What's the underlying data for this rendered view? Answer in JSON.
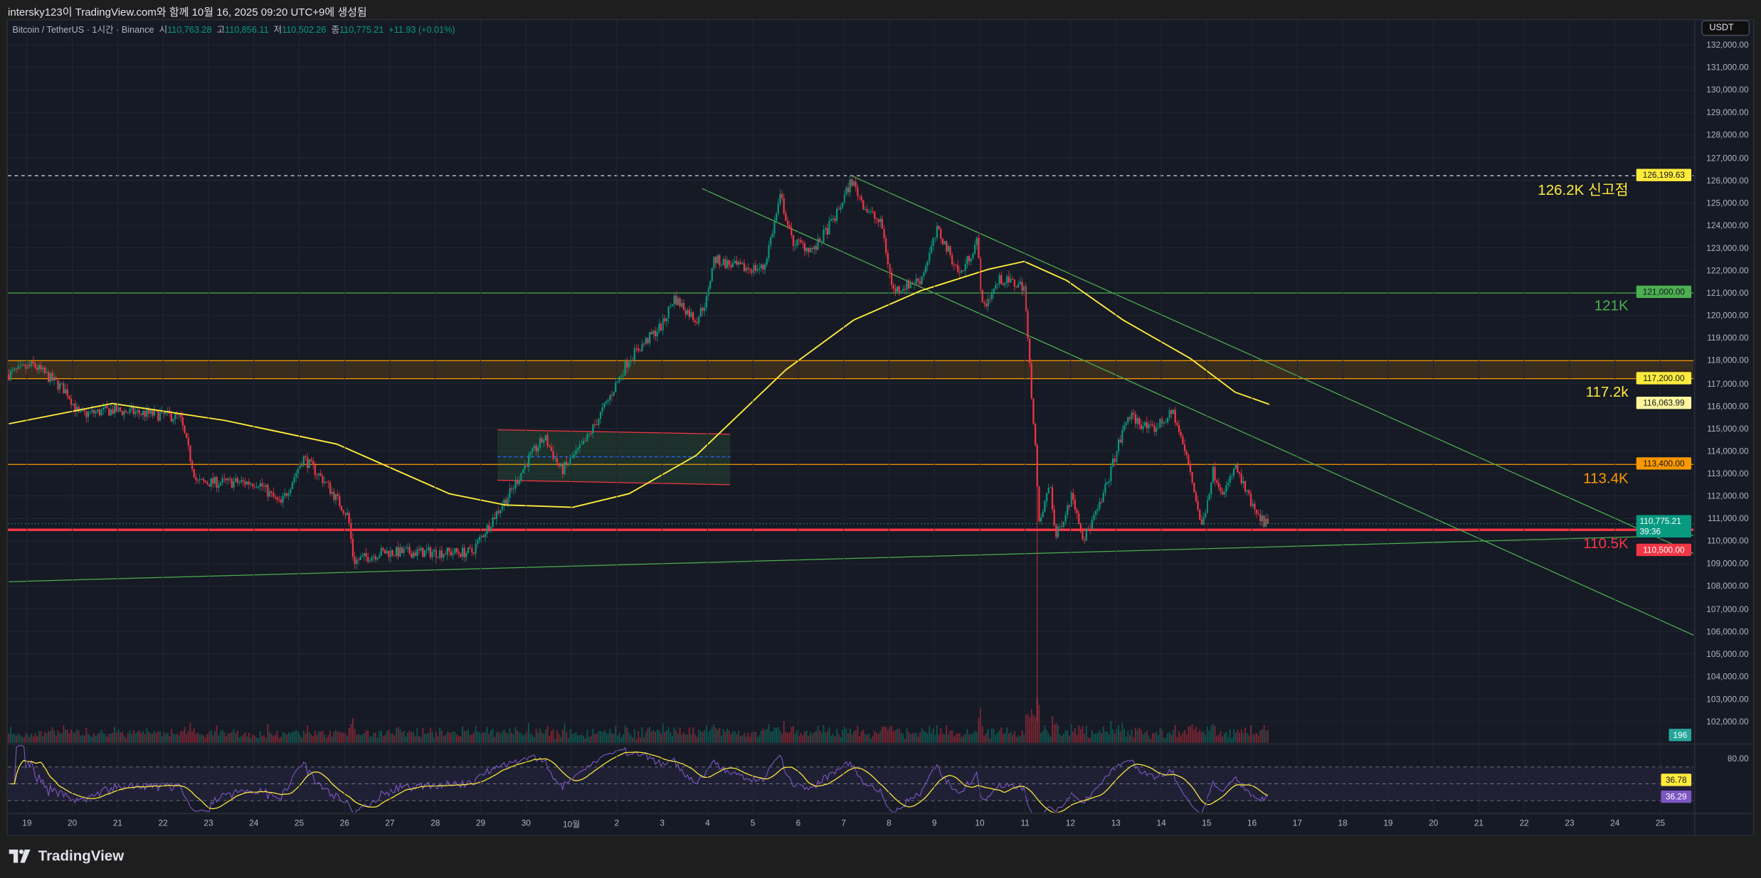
{
  "header": {
    "title": "intersky123이 TradingView.com와 함께 10월 16, 2025 09:20 UTC+9에 생성됨"
  },
  "legend": {
    "symbol": "Bitcoin / TetherUS · 1시간 · Binance",
    "open_label": "시",
    "open": "110,763.28",
    "high_label": "고",
    "high": "110,856.11",
    "low_label": "저",
    "low": "110,502.26",
    "close_label": "종",
    "close": "110,775.21",
    "change": "+11.93 (+0.01%)"
  },
  "currency": "USDT",
  "price_axis": [
    "132,000.00",
    "131,000.00",
    "130,000.00",
    "129,000.00",
    "128,000.00",
    "127,000.00",
    "126,000.00",
    "125,000.00",
    "124,000.00",
    "123,000.00",
    "122,000.00",
    "121,000.00",
    "120,000.00",
    "119,000.00",
    "118,000.00",
    "117,000.00",
    "116,000.00",
    "115,000.00",
    "114,000.00",
    "113,000.00",
    "112,000.00",
    "111,000.00",
    "110,000.00",
    "109,000.00",
    "108,000.00",
    "107,000.00",
    "106,000.00",
    "105,000.00",
    "104,000.00",
    "103,000.00",
    "102,000.00"
  ],
  "badges": {
    "ath": "126,199.63",
    "r121": "121,000.00",
    "r1172": "117,200.00",
    "ma": "116,063.99",
    "r1134": "113,400.00",
    "last": "110,775.21",
    "countdown": "39:36",
    "s1105": "110,500.00",
    "volume": "196",
    "rsi_ma": "36.78",
    "rsi": "36.29"
  },
  "rsi_axis": "80.00",
  "annotations": {
    "ath": "126.2K 신고점",
    "r121": "121K",
    "r1172": "117.2k",
    "r1134": "113.4K",
    "s1105": "110.5K"
  },
  "dates": [
    "19",
    "20",
    "21",
    "22",
    "23",
    "24",
    "25",
    "26",
    "27",
    "28",
    "29",
    "30",
    "10월",
    "2",
    "3",
    "4",
    "5",
    "6",
    "7",
    "8",
    "9",
    "10",
    "11",
    "12",
    "13",
    "14",
    "15",
    "16",
    "17",
    "18",
    "19",
    "20",
    "21",
    "22",
    "23",
    "24",
    "25"
  ],
  "colors": {
    "up": "#089981",
    "down": "#f23645",
    "ma": "#ffeb3b",
    "rsi": "#7e57c2",
    "green_line": "#4caf50",
    "orange": "#ff9800",
    "red": "#f23645"
  },
  "brand": "TradingView",
  "chart_data": {
    "type": "candlestick",
    "x_unit": "days since 2025-09-19 00:00",
    "price_path": [
      [
        -0.4,
        117400
      ],
      [
        0.15,
        117800
      ],
      [
        0.89,
        116600
      ],
      [
        1.14,
        115600
      ],
      [
        1.88,
        115800
      ],
      [
        3.37,
        115500
      ],
      [
        3.74,
        112600
      ],
      [
        5.1,
        112600
      ],
      [
        5.59,
        111600
      ],
      [
        6.09,
        113700
      ],
      [
        6.58,
        112600
      ],
      [
        7.08,
        111100
      ],
      [
        7.2,
        109100
      ],
      [
        7.82,
        109500
      ],
      [
        9.8,
        109500
      ],
      [
        10.3,
        111100
      ],
      [
        10.67,
        112200
      ],
      [
        11.04,
        113600
      ],
      [
        11.41,
        114600
      ],
      [
        11.78,
        113100
      ],
      [
        12.28,
        114300
      ],
      [
        12.77,
        116100
      ],
      [
        13.27,
        118100
      ],
      [
        14.01,
        119600
      ],
      [
        14.26,
        120800
      ],
      [
        14.75,
        119800
      ],
      [
        15.0,
        120800
      ],
      [
        15.12,
        122500
      ],
      [
        15.74,
        122100
      ],
      [
        16.24,
        122100
      ],
      [
        16.61,
        125300
      ],
      [
        16.86,
        123300
      ],
      [
        17.35,
        122900
      ],
      [
        17.85,
        124500
      ],
      [
        18.17,
        126000
      ],
      [
        18.47,
        124800
      ],
      [
        18.84,
        124000
      ],
      [
        19.08,
        121100
      ],
      [
        19.7,
        121600
      ],
      [
        20.07,
        123800
      ],
      [
        20.57,
        121800
      ],
      [
        20.94,
        123300
      ],
      [
        21.06,
        120300
      ],
      [
        21.44,
        121600
      ],
      [
        21.98,
        121300
      ],
      [
        22.05,
        119100
      ],
      [
        22.23,
        114100
      ],
      [
        22.3,
        110600
      ],
      [
        22.55,
        112600
      ],
      [
        22.67,
        110100
      ],
      [
        23.04,
        112100
      ],
      [
        23.29,
        110100
      ],
      [
        23.66,
        111600
      ],
      [
        24.03,
        114100
      ],
      [
        24.28,
        115600
      ],
      [
        24.78,
        114900
      ],
      [
        25.27,
        115700
      ],
      [
        25.64,
        113100
      ],
      [
        25.89,
        110600
      ],
      [
        26.14,
        113100
      ],
      [
        26.39,
        112100
      ],
      [
        26.63,
        113300
      ],
      [
        26.88,
        112100
      ],
      [
        27.13,
        111000
      ],
      [
        27.38,
        110775
      ]
    ],
    "flash_wick_low": [
      22.28,
      102000
    ],
    "ma_path": [
      [
        -0.4,
        115200
      ],
      [
        1.88,
        116100
      ],
      [
        4.36,
        115350
      ],
      [
        6.83,
        114300
      ],
      [
        9.31,
        112100
      ],
      [
        10.54,
        111600
      ],
      [
        12.03,
        111500
      ],
      [
        13.27,
        112100
      ],
      [
        14.75,
        113800
      ],
      [
        16.73,
        117600
      ],
      [
        18.22,
        119800
      ],
      [
        19.7,
        121100
      ],
      [
        21.19,
        122050
      ],
      [
        21.98,
        122400
      ],
      [
        22.92,
        121550
      ],
      [
        24.16,
        119800
      ],
      [
        25.64,
        118100
      ],
      [
        26.63,
        116600
      ],
      [
        27.38,
        116064
      ]
    ],
    "horizontal_levels": [
      {
        "price": 126199.63,
        "style": "dashed",
        "color": "#e0e3eb"
      },
      {
        "price": 121000,
        "color": "#4caf50"
      },
      {
        "price": 118000,
        "color": "#ff9800"
      },
      {
        "price": 117200,
        "color": "#ff9800"
      },
      {
        "price": 113400,
        "color": "#ff9800"
      },
      {
        "price": 110500,
        "color": "#f23645"
      }
    ],
    "trendlines": [
      {
        "from": [
          18.17,
          126200
        ],
        "to": [
          38.2,
          108120
        ],
        "color": "#4caf50"
      },
      {
        "from": [
          14.88,
          125630
        ],
        "to": [
          38.2,
          104500
        ],
        "color": "#4caf50"
      },
      {
        "from": [
          -0.4,
          108200
        ],
        "to": [
          36.73,
          110260
        ],
        "color": "#4caf50"
      }
    ],
    "range_box": {
      "from_day": 10.37,
      "to_day": 15.5,
      "top": [
        114935,
        114740
      ],
      "bottom": [
        112700,
        112500
      ],
      "mid": 113740
    },
    "ylim": [
      102000,
      132000
    ],
    "rsi_levels": [
      70,
      50,
      30
    ],
    "rsi_last": 36.29,
    "rsi_ma_last": 36.78,
    "last_price": 110775.21
  }
}
